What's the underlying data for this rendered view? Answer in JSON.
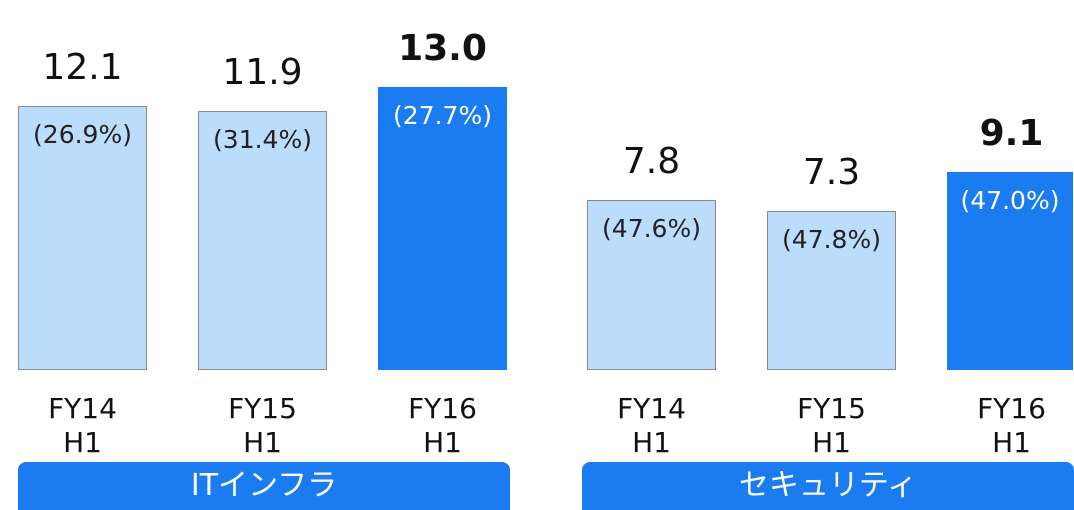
{
  "chart_data": [
    {
      "type": "bar",
      "title": "ITインフラ",
      "categories": [
        "FY14\nH1",
        "FY15\nH1",
        "FY16\nH1"
      ],
      "values": [
        12.1,
        11.9,
        13.0
      ],
      "value_labels": [
        "12.1",
        "11.9",
        "13.0"
      ],
      "share_labels": [
        "(26.9%)",
        "(31.4%)",
        "(27.7%)"
      ],
      "colors": [
        "#bcdcfc",
        "#bcdcfc",
        "#1a7cf0"
      ],
      "emphasis": [
        false,
        false,
        true
      ]
    },
    {
      "type": "bar",
      "title": "セキュリティ",
      "categories": [
        "FY14\nH1",
        "FY15\nH1",
        "FY16\nH1"
      ],
      "values": [
        7.8,
        7.3,
        9.1
      ],
      "value_labels": [
        "7.8",
        "7.3",
        "9.1"
      ],
      "share_labels": [
        "(47.6%)",
        "(47.8%)",
        "(47.0%)"
      ],
      "colors": [
        "#bcdcfc",
        "#bcdcfc",
        "#1a7cf0"
      ],
      "emphasis": [
        false,
        false,
        true
      ]
    }
  ]
}
